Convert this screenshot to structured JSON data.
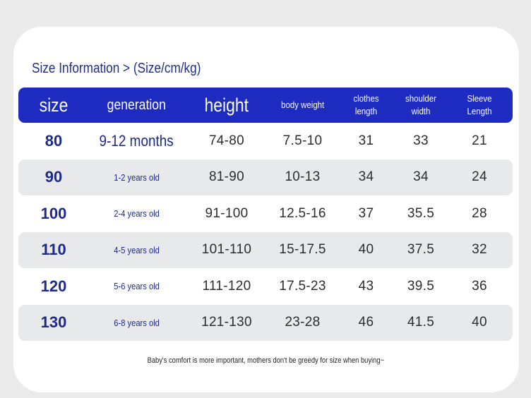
{
  "title": "Size Information > (Size/cm/kg)",
  "headers": {
    "size": "size",
    "generation": "generation",
    "height": "height",
    "body_weight": "body weight",
    "clothes_length": "clothes length",
    "shoulder_width": "shoulder width",
    "sleeve_length": "Sleeve Length"
  },
  "rows": [
    {
      "size": "80",
      "generation": "9-12 months",
      "height": "74-80",
      "body_weight": "7.5-10",
      "clothes_length": "31",
      "shoulder_width": "33",
      "sleeve_length": "21"
    },
    {
      "size": "90",
      "generation": "1-2 years old",
      "height": "81-90",
      "body_weight": "10-13",
      "clothes_length": "34",
      "shoulder_width": "34",
      "sleeve_length": "24"
    },
    {
      "size": "100",
      "generation": "2-4 years old",
      "height": "91-100",
      "body_weight": "12.5-16",
      "clothes_length": "37",
      "shoulder_width": "35.5",
      "sleeve_length": "28"
    },
    {
      "size": "110",
      "generation": "4-5 years old",
      "height": "101-110",
      "body_weight": "15-17.5",
      "clothes_length": "40",
      "shoulder_width": "37.5",
      "sleeve_length": "32"
    },
    {
      "size": "120",
      "generation": "5-6 years old",
      "height": "111-120",
      "body_weight": "17.5-23",
      "clothes_length": "43",
      "shoulder_width": "39.5",
      "sleeve_length": "36"
    },
    {
      "size": "130",
      "generation": "6-8 years old",
      "height": "121-130",
      "body_weight": "23-28",
      "clothes_length": "46",
      "shoulder_width": "41.5",
      "sleeve_length": "40"
    }
  ],
  "footer": "Baby's comfort is more important, mothers don't be greedy for size when buying~",
  "colors": {
    "header_bg": "#1d2bc0",
    "accent_text": "#1d2a8a",
    "row_shade": "#e8e9ea"
  }
}
